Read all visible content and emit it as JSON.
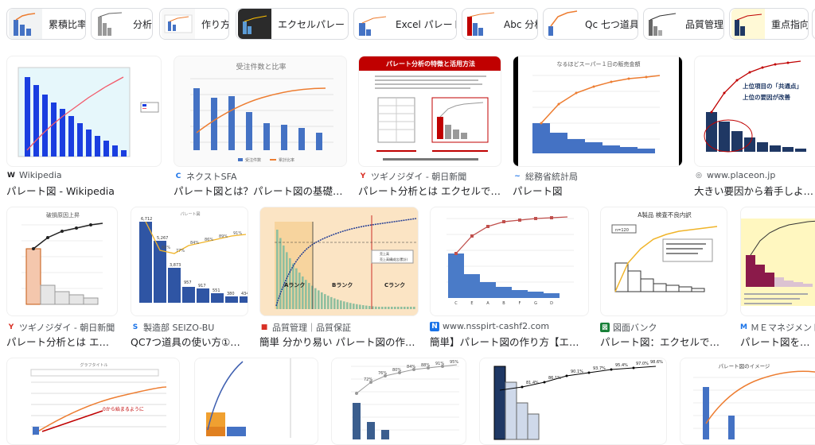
{
  "chips": [
    {
      "label": "累積比率"
    },
    {
      "label": "分析"
    },
    {
      "label": "作り方"
    },
    {
      "label": "エクセルパレート"
    },
    {
      "label": "Excel パレート"
    },
    {
      "label": "Abc 分析"
    },
    {
      "label": "Qc 七つ道具"
    },
    {
      "label": "品質管理"
    },
    {
      "label": "重点指向"
    }
  ],
  "results": [
    {
      "source": "Wikipedia",
      "title": "パレート図 - Wikipedia",
      "fav_color": "#202124",
      "fav_glyph": "W"
    },
    {
      "source": "ネクストSFA",
      "title": "パレート図とは？パレート図の基礎と活…",
      "fav_color": "#1a73e8",
      "fav_glyph": "C",
      "image_title": "受注件数と比率",
      "legend": [
        "受注件数",
        "累計比率"
      ]
    },
    {
      "source": "ツギノジダイ - 朝日新聞",
      "title": "パレート分析とは エクセルでの…",
      "fav_color": "#d93025",
      "fav_glyph": "Y",
      "image_title": "パレート分析の特徴と活用方法"
    },
    {
      "source": "総務省統計局",
      "title": "パレート図",
      "fav_color": "#1a73e8",
      "fav_glyph": "~",
      "image_title": "なるほどスーパー１日の販売金額"
    },
    {
      "source": "www.placeon.jp",
      "title": "大きい要因から着手しよう パレ…",
      "fav_color": "#5f6368",
      "fav_glyph": "◎",
      "notes": [
        "上位項目の「共通点」",
        "上位の要因が改善"
      ]
    },
    {
      "source": "ツギノジダイ - 朝日新聞",
      "title": "パレート分析とは エク…",
      "fav_color": "#d93025",
      "fav_glyph": "Y",
      "image_title": "破損原因上昇"
    },
    {
      "source": "製造部 SEIZO-BU",
      "title": "QC7つ道具の使い方①パ…",
      "fav_color": "#1a73e8",
      "fav_glyph": "S",
      "image_title": "パレート図",
      "bar_labels": [
        "6,712",
        "5,267",
        "3,873",
        "957",
        "917",
        "551",
        "380",
        "434"
      ],
      "pct_labels": [
        "68%",
        "77%",
        "84%",
        "86%",
        "89%",
        "91%",
        "93%"
      ]
    },
    {
      "source": "品質管理｜品質保証",
      "title": "簡単 分かり易い パレート図の作成【…",
      "fav_color": "#d93025",
      "fav_glyph": "■",
      "ranks": [
        "Aランク",
        "Bランク",
        "Cランク"
      ],
      "legend": [
        "売上高",
        "売上高構成比(累計)"
      ]
    },
    {
      "source": "www.nsspirt-cashf2.com",
      "title": "簡単】パレート図の作り方【エクセ…",
      "fav_color": "#1a73e8",
      "fav_glyph": "N",
      "categories": [
        "C",
        "E",
        "A",
        "B",
        "F",
        "G",
        "D"
      ]
    },
    {
      "source": "図面バンク",
      "title": "パレート図：エクセルでの…",
      "fav_color": "#188038",
      "fav_glyph": "図",
      "image_title": "A製品 検査不良内訳",
      "n_label": "n=120"
    },
    {
      "source": "ＭＥマネジメントサ…",
      "title": "パレート図を活用し…",
      "fav_color": "#1a73e8",
      "fav_glyph": "M"
    },
    {
      "image_title": "グラフタイトル",
      "annotation": "0から始まるように"
    },
    {},
    {
      "pct_labels": [
        "72%",
        "76%",
        "80%",
        "84%",
        "88%",
        "91%",
        "95%"
      ]
    },
    {
      "pct_labels": [
        "81.4%",
        "86.1%",
        "90.1%",
        "93.7%",
        "95.4%",
        "97.0%",
        "98.6%"
      ]
    },
    {
      "image_title": "パレート図のイメージ"
    }
  ],
  "colors": {
    "bar_blue": "#4472c4",
    "line_orange": "#ed7d31",
    "accent_red": "#c00000"
  }
}
